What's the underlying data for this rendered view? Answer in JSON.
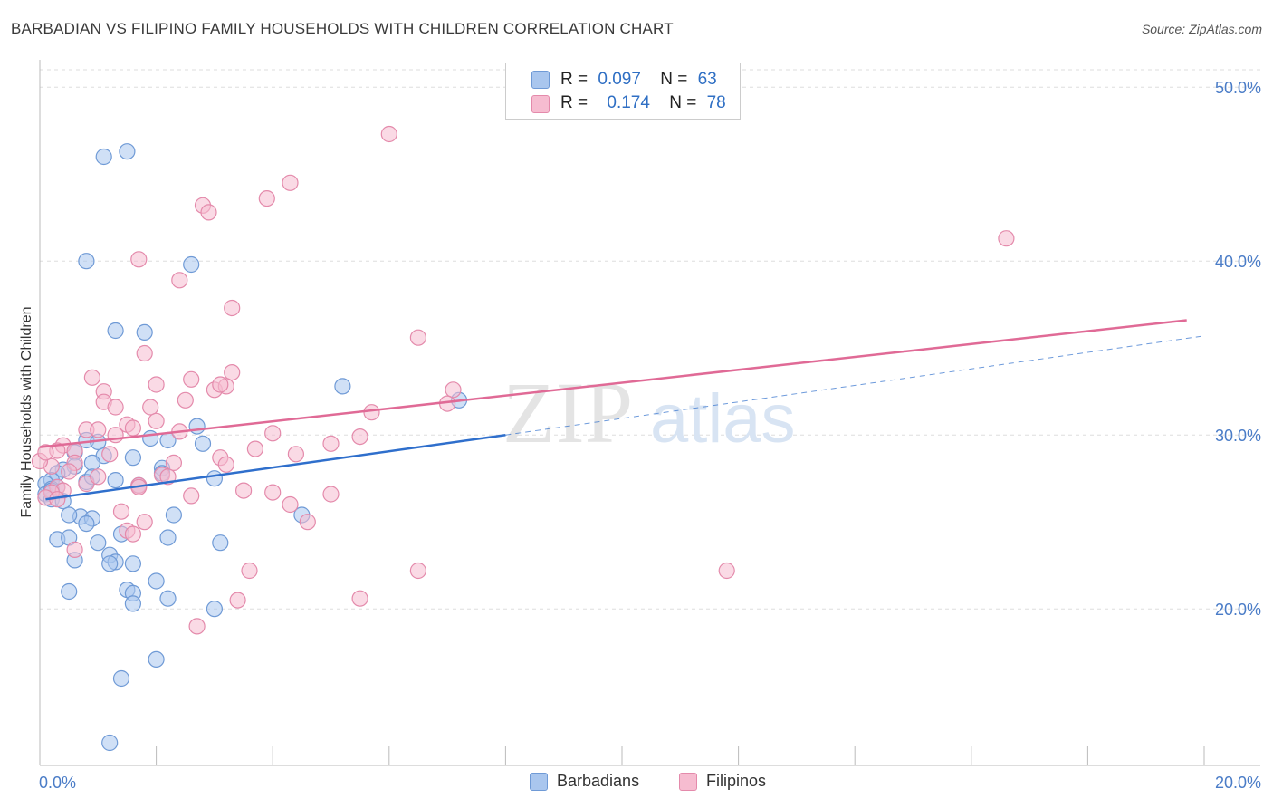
{
  "title": "BARBADIAN VS FILIPINO FAMILY HOUSEHOLDS WITH CHILDREN CORRELATION CHART",
  "source": "Source: ZipAtlas.com",
  "watermark": {
    "zip": "ZIP",
    "atlas": "atlas"
  },
  "legend": [
    {
      "r_label": "R =",
      "r_value": "0.097",
      "n_label": "N =",
      "n_value": "63"
    },
    {
      "r_label": "R =",
      "r_value": "0.174",
      "n_label": "N =",
      "n_value": "78"
    }
  ],
  "bottom_legend": [
    "Barbadians",
    "Filipinos"
  ],
  "colors": {
    "barbadian_fill": "#a9c6ee",
    "barbadian_stroke": "#6f9ad6",
    "barbadian_line": "#2f6fcc",
    "filipino_fill": "#f6bcd0",
    "filipino_stroke": "#e48aab",
    "filipino_line": "#e06a96",
    "tick_text": "#4a7cc7",
    "grid": "#dddddd"
  },
  "chart_data": {
    "type": "scatter",
    "title": "BARBADIAN VS FILIPINO FAMILY HOUSEHOLDS WITH CHILDREN CORRELATION CHART",
    "xlabel": "",
    "ylabel": "Family Households with Children",
    "xlim": [
      0,
      20
    ],
    "ylim": [
      11,
      51
    ],
    "x_tick_labels": [
      {
        "value": 0,
        "label": "0.0%"
      },
      {
        "value": 20,
        "label": "20.0%"
      }
    ],
    "y_tick_labels": [
      {
        "value": 20,
        "label": "20.0%"
      },
      {
        "value": 30,
        "label": "30.0%"
      },
      {
        "value": 40,
        "label": "40.0%"
      },
      {
        "value": 50,
        "label": "50.0%"
      }
    ],
    "grid": true,
    "legend_position": "top-center",
    "series": [
      {
        "name": "Barbadians",
        "r": 0.097,
        "n": 63,
        "trend": {
          "x0": 0.1,
          "y0": 26.3,
          "x1": 8.0,
          "y1": 30.0,
          "dash_to_x": 20.0,
          "dash_to_y": 35.7
        },
        "points": [
          [
            1.1,
            46.0
          ],
          [
            1.5,
            46.3
          ],
          [
            0.8,
            40.0
          ],
          [
            2.6,
            39.8
          ],
          [
            1.3,
            36.0
          ],
          [
            1.8,
            35.9
          ],
          [
            5.2,
            32.8
          ],
          [
            7.2,
            32.0
          ],
          [
            2.7,
            30.5
          ],
          [
            0.8,
            29.7
          ],
          [
            1.0,
            29.6
          ],
          [
            1.9,
            29.8
          ],
          [
            2.2,
            29.7
          ],
          [
            2.8,
            29.5
          ],
          [
            0.6,
            29.0
          ],
          [
            1.1,
            28.8
          ],
          [
            1.6,
            28.7
          ],
          [
            0.6,
            28.2
          ],
          [
            0.9,
            28.4
          ],
          [
            2.1,
            28.1
          ],
          [
            0.4,
            28.0
          ],
          [
            0.3,
            27.8
          ],
          [
            0.2,
            27.4
          ],
          [
            0.1,
            27.2
          ],
          [
            0.3,
            27.0
          ],
          [
            0.8,
            27.3
          ],
          [
            0.9,
            27.6
          ],
          [
            1.3,
            27.4
          ],
          [
            1.7,
            27.1
          ],
          [
            2.1,
            27.8
          ],
          [
            3.0,
            27.5
          ],
          [
            0.2,
            26.9
          ],
          [
            0.1,
            26.6
          ],
          [
            0.2,
            26.3
          ],
          [
            0.4,
            26.2
          ],
          [
            0.7,
            25.3
          ],
          [
            0.5,
            25.4
          ],
          [
            0.9,
            25.2
          ],
          [
            0.8,
            24.9
          ],
          [
            2.3,
            25.4
          ],
          [
            4.5,
            25.4
          ],
          [
            0.3,
            24.0
          ],
          [
            0.5,
            24.1
          ],
          [
            1.0,
            23.8
          ],
          [
            1.4,
            24.3
          ],
          [
            2.2,
            24.1
          ],
          [
            3.1,
            23.8
          ],
          [
            0.6,
            22.8
          ],
          [
            1.2,
            23.1
          ],
          [
            1.3,
            22.7
          ],
          [
            1.2,
            22.6
          ],
          [
            1.6,
            22.6
          ],
          [
            2.0,
            21.6
          ],
          [
            0.5,
            21.0
          ],
          [
            1.5,
            21.1
          ],
          [
            1.6,
            20.9
          ],
          [
            1.6,
            20.3
          ],
          [
            2.2,
            20.6
          ],
          [
            3.0,
            20.0
          ],
          [
            2.0,
            17.1
          ],
          [
            1.4,
            16.0
          ],
          [
            1.2,
            12.3
          ],
          [
            0.2,
            26.8
          ]
        ]
      },
      {
        "name": "Filipinos",
        "r": 0.174,
        "n": 78,
        "trend": {
          "x0": 0.0,
          "y0": 29.3,
          "x1": 19.7,
          "y1": 36.6
        },
        "points": [
          [
            6.0,
            47.3
          ],
          [
            4.3,
            44.5
          ],
          [
            3.9,
            43.6
          ],
          [
            2.8,
            43.2
          ],
          [
            2.9,
            42.8
          ],
          [
            16.6,
            41.3
          ],
          [
            1.7,
            40.1
          ],
          [
            2.4,
            38.9
          ],
          [
            3.3,
            37.3
          ],
          [
            6.5,
            35.6
          ],
          [
            1.8,
            34.7
          ],
          [
            3.3,
            33.6
          ],
          [
            0.9,
            33.3
          ],
          [
            2.6,
            33.2
          ],
          [
            2.0,
            32.9
          ],
          [
            3.0,
            32.6
          ],
          [
            3.2,
            32.8
          ],
          [
            3.1,
            32.9
          ],
          [
            7.1,
            32.6
          ],
          [
            1.1,
            32.5
          ],
          [
            1.1,
            31.9
          ],
          [
            2.5,
            32.0
          ],
          [
            1.9,
            31.6
          ],
          [
            7.0,
            31.8
          ],
          [
            5.7,
            31.3
          ],
          [
            1.3,
            31.6
          ],
          [
            1.5,
            30.6
          ],
          [
            1.6,
            30.4
          ],
          [
            0.8,
            30.3
          ],
          [
            1.0,
            30.3
          ],
          [
            2.0,
            30.8
          ],
          [
            4.0,
            30.1
          ],
          [
            5.5,
            29.9
          ],
          [
            1.3,
            30.0
          ],
          [
            5.0,
            29.5
          ],
          [
            0.4,
            29.4
          ],
          [
            0.3,
            29.1
          ],
          [
            0.6,
            29.1
          ],
          [
            3.7,
            29.2
          ],
          [
            4.4,
            28.9
          ],
          [
            3.1,
            28.7
          ],
          [
            0.6,
            28.4
          ],
          [
            2.3,
            28.4
          ],
          [
            3.2,
            28.3
          ],
          [
            0.2,
            28.2
          ],
          [
            2.1,
            27.7
          ],
          [
            2.2,
            27.6
          ],
          [
            1.7,
            27.1
          ],
          [
            0.8,
            27.2
          ],
          [
            1.7,
            27.0
          ],
          [
            1.0,
            27.6
          ],
          [
            0.3,
            27.0
          ],
          [
            0.4,
            26.8
          ],
          [
            0.2,
            26.7
          ],
          [
            3.5,
            26.8
          ],
          [
            4.0,
            26.7
          ],
          [
            5.0,
            26.6
          ],
          [
            2.6,
            26.5
          ],
          [
            0.1,
            26.4
          ],
          [
            0.3,
            26.3
          ],
          [
            4.3,
            26.0
          ],
          [
            1.4,
            25.6
          ],
          [
            1.8,
            25.0
          ],
          [
            4.6,
            25.0
          ],
          [
            1.5,
            24.5
          ],
          [
            1.6,
            24.3
          ],
          [
            0.6,
            23.4
          ],
          [
            3.6,
            22.2
          ],
          [
            6.5,
            22.2
          ],
          [
            11.8,
            22.2
          ],
          [
            3.4,
            20.5
          ],
          [
            5.5,
            20.6
          ],
          [
            2.7,
            19.0
          ],
          [
            0.0,
            28.5
          ],
          [
            0.1,
            29.0
          ],
          [
            1.2,
            28.9
          ],
          [
            2.4,
            30.2
          ],
          [
            0.5,
            27.9
          ]
        ]
      }
    ]
  }
}
